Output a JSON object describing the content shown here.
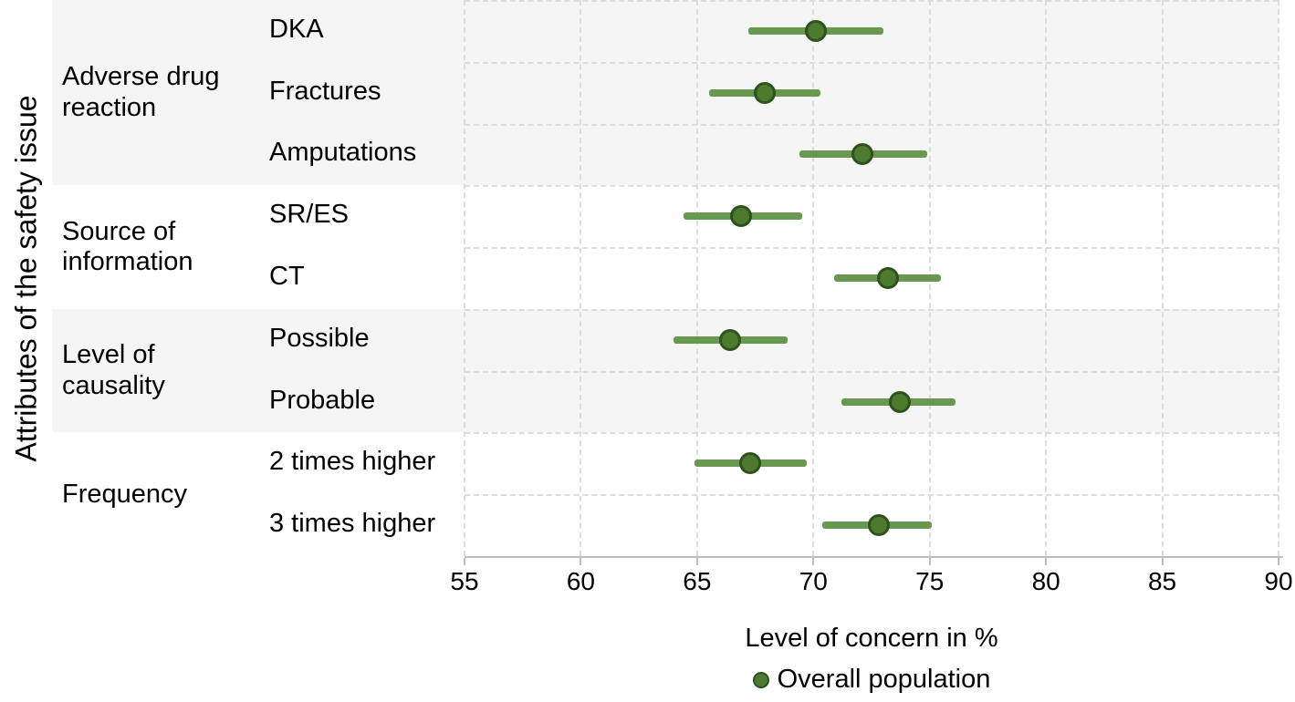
{
  "figure": {
    "y_axis_title": "Attributes of the safety issue",
    "x_axis_title": "Level of concern in %"
  },
  "chart_data": {
    "type": "scatter",
    "subtype": "horizontal-dot-plot-with-ci",
    "title": "",
    "xlabel": "Level of concern in %",
    "ylabel": "Attributes of the safety issue",
    "xlim": [
      55,
      90
    ],
    "x_ticks": [
      55,
      60,
      65,
      70,
      75,
      80,
      85,
      90
    ],
    "grid": "dashed",
    "legend_position": "bottom",
    "series": [
      {
        "name": "Overall population",
        "marker": "circle",
        "marker_color": "#4c7b30",
        "marker_ring_color": "#2f511d",
        "line_color": "#699950"
      }
    ],
    "groups": [
      {
        "label": "Adverse drug reaction",
        "shaded": true,
        "rows": [
          {
            "label": "DKA",
            "value": 70.1,
            "ci_low": 67.2,
            "ci_high": 73.0
          },
          {
            "label": "Fractures",
            "value": 67.9,
            "ci_low": 65.5,
            "ci_high": 70.3
          },
          {
            "label": "Amputations",
            "value": 72.1,
            "ci_low": 69.4,
            "ci_high": 74.9
          }
        ]
      },
      {
        "label": "Source of information",
        "shaded": false,
        "rows": [
          {
            "label": "SR/ES",
            "value": 66.9,
            "ci_low": 64.4,
            "ci_high": 69.5
          },
          {
            "label": "CT",
            "value": 73.2,
            "ci_low": 70.9,
            "ci_high": 75.5
          }
        ]
      },
      {
        "label": "Level of causality",
        "shaded": true,
        "rows": [
          {
            "label": "Possible",
            "value": 66.4,
            "ci_low": 64.0,
            "ci_high": 68.9
          },
          {
            "label": "Probable",
            "value": 73.7,
            "ci_low": 71.2,
            "ci_high": 76.1
          }
        ]
      },
      {
        "label": "Frequency",
        "shaded": false,
        "rows": [
          {
            "label": "2 times higher",
            "value": 67.3,
            "ci_low": 64.9,
            "ci_high": 69.7
          },
          {
            "label": "3 times higher",
            "value": 72.8,
            "ci_low": 70.4,
            "ci_high": 75.1
          }
        ]
      }
    ]
  },
  "colors": {
    "band": "#f5f5f5",
    "gridline": "#dcdcdc",
    "axis": "#bdbdbd",
    "text": "#000000",
    "ci_line": "#699950",
    "marker_fill": "#4c7b30",
    "marker_ring": "#2f511d"
  }
}
